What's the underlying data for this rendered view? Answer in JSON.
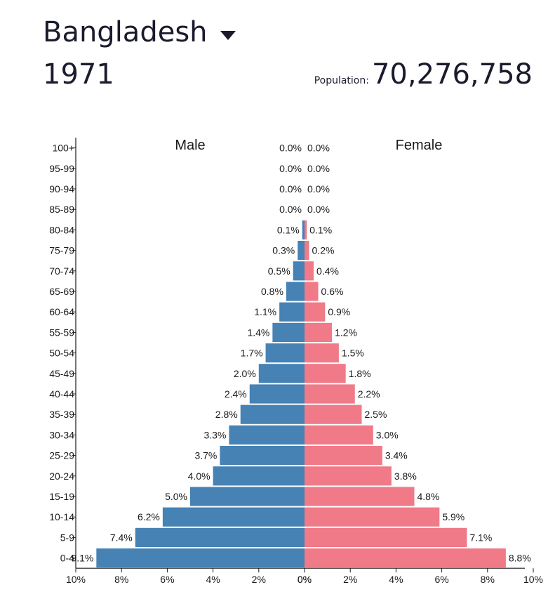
{
  "header": {
    "country": "Bangladesh",
    "year": "1971",
    "population_label": "Population:",
    "population_value": "70,276,758"
  },
  "icons": {
    "dropdown": "caret-down-icon"
  },
  "colors": {
    "male": "#4682b4",
    "female": "#f07a87"
  },
  "chart_data": {
    "type": "bar",
    "orientation": "horizontal",
    "layout": "population-pyramid",
    "categories": [
      "0-4",
      "5-9",
      "10-14",
      "15-19",
      "20-24",
      "25-29",
      "30-34",
      "35-39",
      "40-44",
      "45-49",
      "50-54",
      "55-59",
      "60-64",
      "65-69",
      "70-74",
      "75-79",
      "80-84",
      "85-89",
      "90-94",
      "95-99",
      "100+"
    ],
    "series": [
      {
        "name": "Male",
        "values": [
          9.1,
          7.4,
          6.2,
          5.0,
          4.0,
          3.7,
          3.3,
          2.8,
          2.4,
          2.0,
          1.7,
          1.4,
          1.1,
          0.8,
          0.5,
          0.3,
          0.1,
          0.0,
          0.0,
          0.0,
          0.0
        ],
        "labels": [
          "9.1%",
          "7.4%",
          "6.2%",
          "5.0%",
          "4.0%",
          "3.7%",
          "3.3%",
          "2.8%",
          "2.4%",
          "2.0%",
          "1.7%",
          "1.4%",
          "1.1%",
          "0.8%",
          "0.5%",
          "0.3%",
          "0.1%",
          "0.0%",
          "0.0%",
          "0.0%",
          "0.0%"
        ]
      },
      {
        "name": "Female",
        "values": [
          8.8,
          7.1,
          5.9,
          4.8,
          3.8,
          3.4,
          3.0,
          2.5,
          2.2,
          1.8,
          1.5,
          1.2,
          0.9,
          0.6,
          0.4,
          0.2,
          0.1,
          0.0,
          0.0,
          0.0,
          0.0
        ],
        "labels": [
          "8.8%",
          "7.1%",
          "5.9%",
          "4.8%",
          "3.8%",
          "3.4%",
          "3.0%",
          "2.5%",
          "2.2%",
          "1.8%",
          "1.5%",
          "1.2%",
          "0.9%",
          "0.6%",
          "0.4%",
          "0.2%",
          "0.1%",
          "0.0%",
          "0.0%",
          "0.0%",
          "0.0%"
        ]
      }
    ],
    "xlim": [
      0,
      10
    ],
    "xticks": [
      "10%",
      "8%",
      "6%",
      "4%",
      "2%",
      "0%",
      "0%",
      "2%",
      "4%",
      "6%",
      "8%",
      "10%"
    ],
    "legend_position": "top"
  }
}
